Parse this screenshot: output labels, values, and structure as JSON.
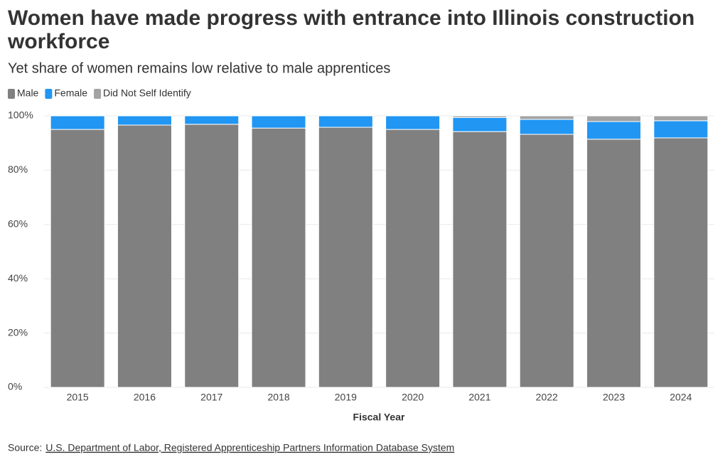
{
  "chart_data": {
    "type": "stacked-bar",
    "title": "Women have made progress with entrance into Illinois construction workforce",
    "subtitle": "Yet share of women remains low relative to male apprentices",
    "x_label": "Fiscal Year",
    "categories": [
      "2015",
      "2016",
      "2017",
      "2018",
      "2019",
      "2020",
      "2021",
      "2022",
      "2023",
      "2024"
    ],
    "series": [
      {
        "name": "Male",
        "color": "#808080",
        "values": [
          95.0,
          96.6,
          96.9,
          95.5,
          95.8,
          95.0,
          94.2,
          93.2,
          91.4,
          91.9
        ]
      },
      {
        "name": "Female",
        "color": "#2196f3",
        "values": [
          5.0,
          3.4,
          3.1,
          4.5,
          4.2,
          5.0,
          5.2,
          5.5,
          6.5,
          6.3
        ]
      },
      {
        "name": "Did Not Self Identify",
        "color": "#a3a3a3",
        "values": [
          0,
          0,
          0,
          0,
          0,
          0,
          0.6,
          1.3,
          2.1,
          1.8
        ]
      }
    ],
    "ylim": [
      0,
      100
    ],
    "yticks": [
      {
        "value": 0,
        "label": "0%"
      },
      {
        "value": 20,
        "label": "20%"
      },
      {
        "value": 40,
        "label": "40%"
      },
      {
        "value": 60,
        "label": "60%"
      },
      {
        "value": 80,
        "label": "80%"
      },
      {
        "value": 100,
        "label": "100%"
      }
    ],
    "grid": true,
    "source": {
      "label": "Source:",
      "text": "U.S. Department of Labor, Registered Apprenticeship Partners Information Database System"
    }
  }
}
